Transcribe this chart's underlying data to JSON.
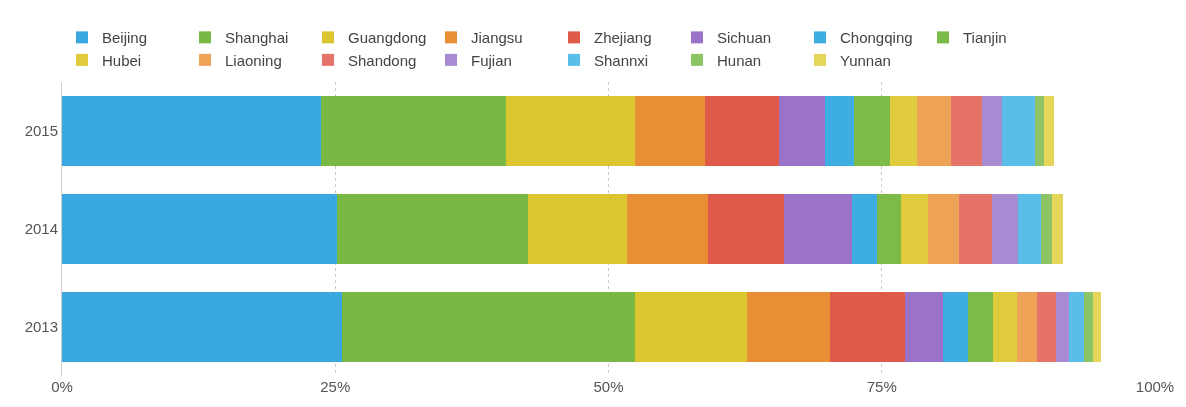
{
  "chart_data": {
    "type": "bar",
    "orientation": "horizontal",
    "stacked": true,
    "categories": [
      "2015",
      "2014",
      "2013"
    ],
    "series": [
      {
        "name": "Beijing",
        "color": "#3aa8e0",
        "values": [
          23.7,
          25.2,
          25.6
        ]
      },
      {
        "name": "Shanghai",
        "color": "#79b843",
        "values": [
          16.9,
          17.4,
          26.8
        ]
      },
      {
        "name": "Guangdong",
        "color": "#dcc630",
        "values": [
          11.8,
          9.1,
          10.3
        ]
      },
      {
        "name": "Jiangsu",
        "color": "#e88f35",
        "values": [
          6.4,
          7.4,
          7.6
        ]
      },
      {
        "name": "Zhejiang",
        "color": "#e05a4a",
        "values": [
          6.8,
          7.0,
          6.8
        ]
      },
      {
        "name": "Sichuan",
        "color": "#9a72c8",
        "values": [
          4.2,
          6.2,
          3.5
        ]
      },
      {
        "name": "Chongqing",
        "color": "#3eaee2",
        "values": [
          2.7,
          2.3,
          2.3
        ]
      },
      {
        "name": "Tianjin",
        "color": "#7dbb48",
        "values": [
          3.3,
          2.2,
          2.3
        ]
      },
      {
        "name": "Hubei",
        "color": "#e0cb3c",
        "values": [
          2.4,
          2.4,
          2.2
        ]
      },
      {
        "name": "Liaoning",
        "color": "#eda255",
        "values": [
          3.1,
          2.9,
          1.8
        ]
      },
      {
        "name": "Shandong",
        "color": "#e57368",
        "values": [
          2.9,
          3.0,
          1.7
        ]
      },
      {
        "name": "Fujian",
        "color": "#a98bd4",
        "values": [
          1.8,
          2.4,
          1.2
        ]
      },
      {
        "name": "Shannxi",
        "color": "#5bbde9",
        "values": [
          3.0,
          2.1,
          1.4
        ]
      },
      {
        "name": "Hunan",
        "color": "#8dc566",
        "values": [
          0.8,
          1.0,
          0.8
        ]
      },
      {
        "name": "Yunnan",
        "color": "#e5d65a",
        "values": [
          1.0,
          1.0,
          0.8
        ]
      }
    ],
    "xlim": [
      0,
      100
    ],
    "xticks": [
      {
        "value": 0,
        "label": "0%"
      },
      {
        "value": 25,
        "label": "25%"
      },
      {
        "value": 50,
        "label": "50%"
      },
      {
        "value": 75,
        "label": "75%"
      },
      {
        "value": 100,
        "label": "100%"
      }
    ],
    "grid": "x",
    "legend": "top left"
  }
}
